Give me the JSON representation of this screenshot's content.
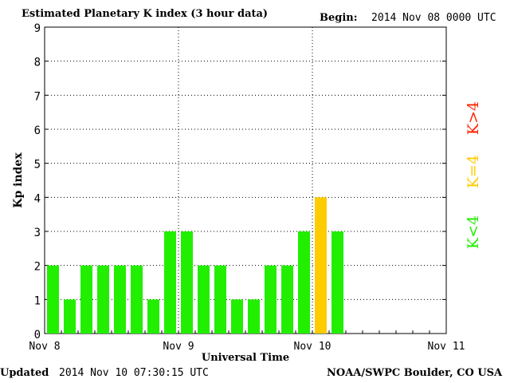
{
  "header": {
    "title": "Estimated Planetary K index (3 hour data)",
    "begin_label": "Begin:",
    "begin_value": "2014 Nov 08 0000 UTC"
  },
  "footer": {
    "updated_label": "Updated",
    "updated_value": "2014 Nov 10 07:30:15 UTC",
    "source": "NOAA/SWPC Boulder, CO USA"
  },
  "legend": {
    "high": "K>4",
    "mid": "K=4",
    "low": "K<4"
  },
  "colors": {
    "low": "#22ee00",
    "mid": "#ffcc00",
    "high": "#ff2200"
  },
  "chart_data": {
    "type": "bar",
    "title": "Estimated Planetary K index (3 hour data)",
    "xlabel": "Universal Time",
    "ylabel": "Kp index",
    "ylim": [
      0,
      9
    ],
    "yticks": [
      0,
      1,
      2,
      3,
      4,
      5,
      6,
      7,
      8,
      9
    ],
    "xlim_days": [
      0,
      3
    ],
    "xticks": [
      "Nov 8",
      "Nov 9",
      "Nov 10",
      "Nov 11"
    ],
    "grid": true,
    "bar_interval_hours": 3,
    "values": [
      2,
      1,
      2,
      2,
      2,
      2,
      1,
      3,
      3,
      2,
      2,
      1,
      1,
      2,
      2,
      3,
      4,
      3
    ]
  }
}
